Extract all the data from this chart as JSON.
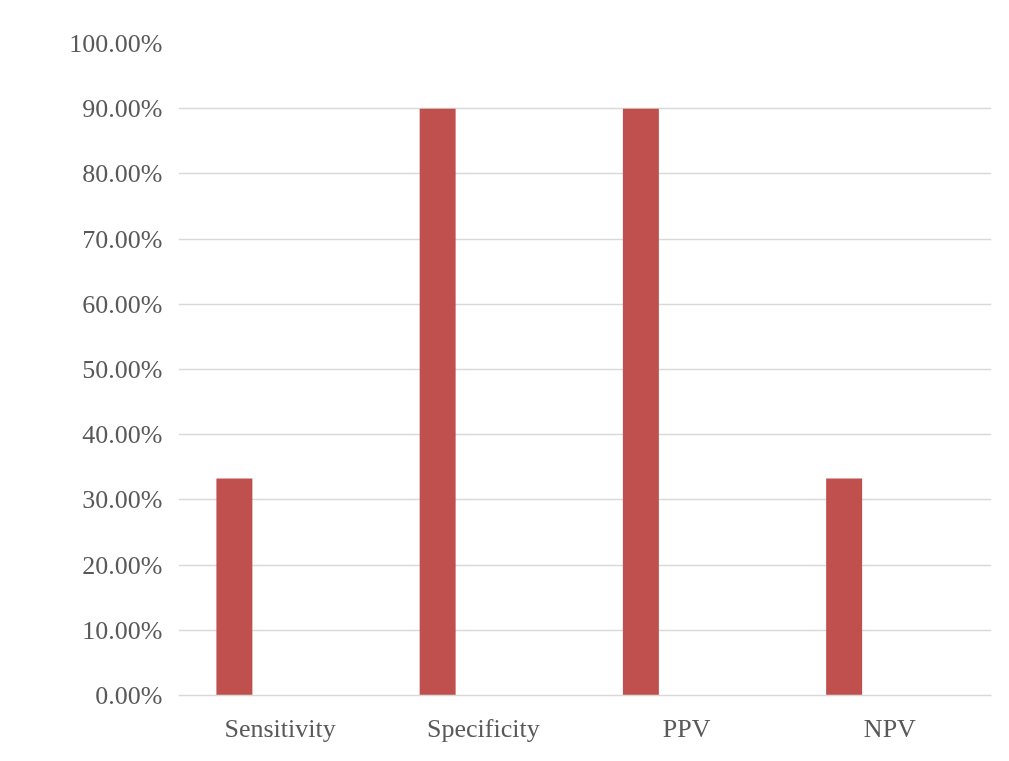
{
  "chart_data": {
    "type": "bar",
    "categories": [
      "Sensitivity",
      "Specificity",
      "PPV",
      "NPV"
    ],
    "series": [
      {
        "color": "#c0504d",
        "values": [
          33.3,
          90,
          90,
          33.3
        ]
      },
      {
        "values": [
          null,
          null,
          null,
          null
        ]
      }
    ],
    "ylim": [
      0,
      100
    ],
    "yticks": [
      {
        "value": 0,
        "label": "0.00%"
      },
      {
        "value": 10,
        "label": "10.00%"
      },
      {
        "value": 20,
        "label": "20.00%"
      },
      {
        "value": 30,
        "label": "30.00%"
      },
      {
        "value": 40,
        "label": "40.00%"
      },
      {
        "value": 50,
        "label": "50.00%"
      },
      {
        "value": 60,
        "label": "60.00%"
      },
      {
        "value": 70,
        "label": "70.00%"
      },
      {
        "value": 80,
        "label": "80.00%"
      },
      {
        "value": 90,
        "label": "90.00%"
      },
      {
        "value": 100,
        "label": "100.00%"
      }
    ],
    "grid": "y"
  }
}
